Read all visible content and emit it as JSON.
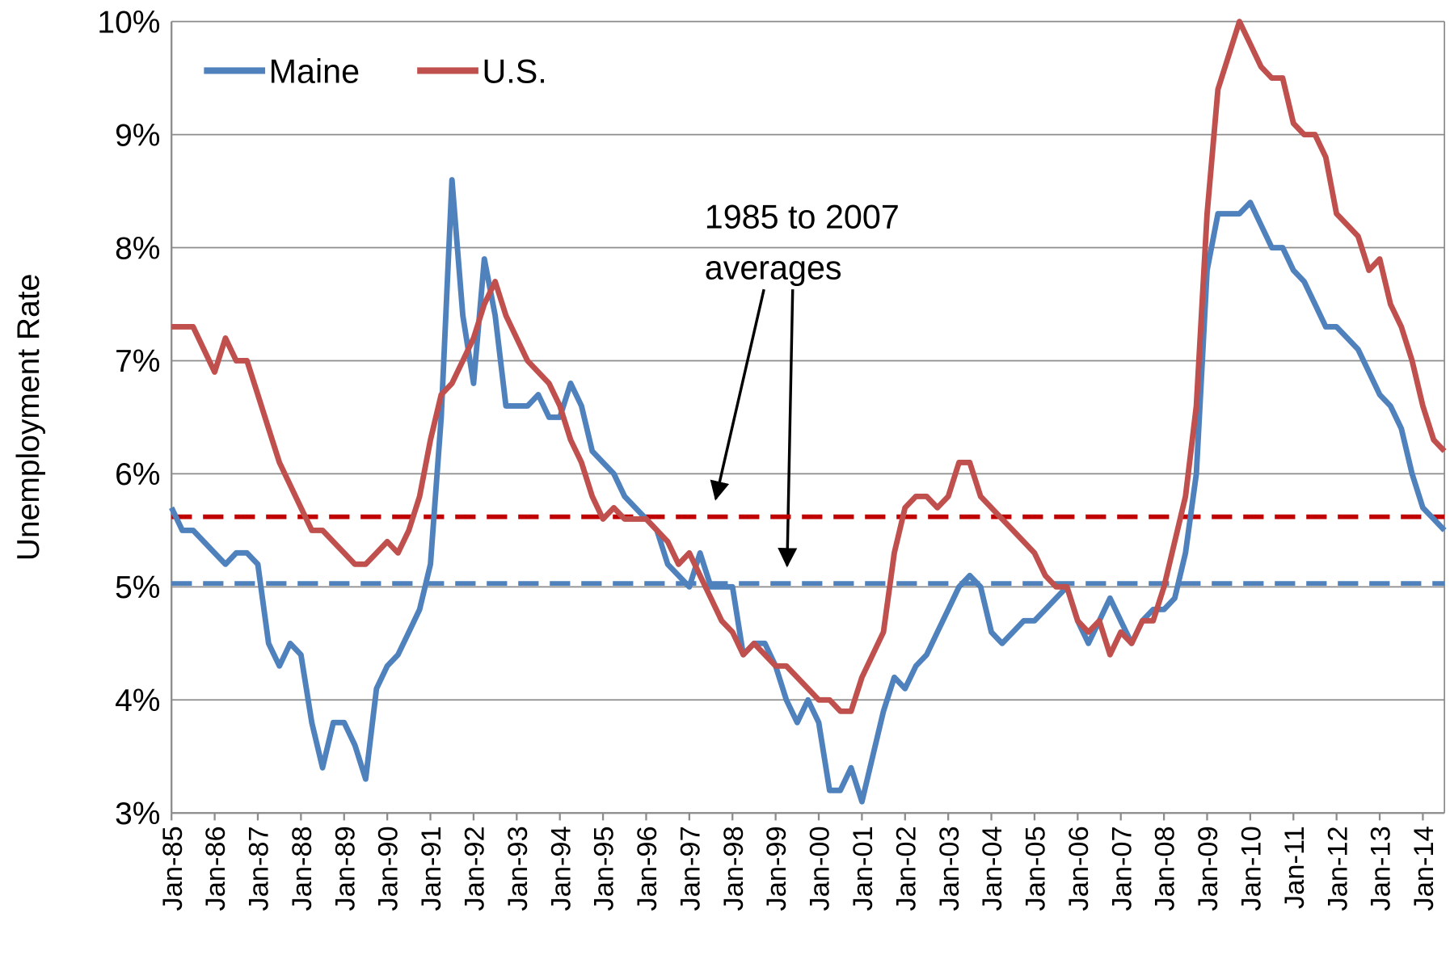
{
  "chart_data": {
    "type": "line",
    "y_label": "Unemployment Rate",
    "annotation": [
      "1985 to 2007",
      "averages"
    ],
    "categories": [
      "Jan-85",
      null,
      null,
      null,
      "Jan-86",
      null,
      null,
      null,
      "Jan-87",
      null,
      null,
      null,
      "Jan-88",
      null,
      null,
      null,
      "Jan-89",
      null,
      null,
      null,
      "Jan-90",
      null,
      null,
      null,
      "Jan-91",
      null,
      null,
      null,
      "Jan-92",
      null,
      null,
      null,
      "Jan-93",
      null,
      null,
      null,
      "Jan-94",
      null,
      null,
      null,
      "Jan-95",
      null,
      null,
      null,
      "Jan-96",
      null,
      null,
      null,
      "Jan-97",
      null,
      null,
      null,
      "Jan-98",
      null,
      null,
      null,
      "Jan-99",
      null,
      null,
      null,
      "Jan-00",
      null,
      null,
      null,
      "Jan-01",
      null,
      null,
      null,
      "Jan-02",
      null,
      null,
      null,
      "Jan-03",
      null,
      null,
      null,
      "Jan-04",
      null,
      null,
      null,
      "Jan-05",
      null,
      null,
      null,
      "Jan-06",
      null,
      null,
      null,
      "Jan-07",
      null,
      null,
      null,
      "Jan-08",
      null,
      null,
      null,
      "Jan-09",
      null,
      null,
      null,
      "Jan-10",
      null,
      null,
      null,
      "Jan-11",
      null,
      null,
      null,
      "Jan-12",
      null,
      null,
      null,
      "Jan-13",
      null,
      null,
      null,
      "Jan-14",
      null,
      null
    ],
    "series": [
      {
        "name": "Maine",
        "color": "#4f81bd",
        "values": [
          5.7,
          5.5,
          5.5,
          5.4,
          5.3,
          5.2,
          5.3,
          5.3,
          5.2,
          4.5,
          4.3,
          4.5,
          4.4,
          3.8,
          3.4,
          3.8,
          3.8,
          3.6,
          3.3,
          4.1,
          4.3,
          4.4,
          4.6,
          4.8,
          5.2,
          6.5,
          8.6,
          7.4,
          6.8,
          7.9,
          7.4,
          6.6,
          6.6,
          6.6,
          6.7,
          6.5,
          6.5,
          6.8,
          6.6,
          6.2,
          6.1,
          6.0,
          5.8,
          5.7,
          5.6,
          5.5,
          5.2,
          5.1,
          5.0,
          5.3,
          5.0,
          5.0,
          5.0,
          4.4,
          4.5,
          4.5,
          4.3,
          4.0,
          3.8,
          4.0,
          3.8,
          3.2,
          3.2,
          3.4,
          3.1,
          3.5,
          3.9,
          4.2,
          4.1,
          4.3,
          4.4,
          4.6,
          4.8,
          5.0,
          5.1,
          5.0,
          4.6,
          4.5,
          4.6,
          4.7,
          4.7,
          4.8,
          4.9,
          5.0,
          4.7,
          4.5,
          4.7,
          4.9,
          4.7,
          4.5,
          4.7,
          4.8,
          4.8,
          4.9,
          5.3,
          6.0,
          7.8,
          8.3,
          8.3,
          8.3,
          8.4,
          8.2,
          8.0,
          8.0,
          7.8,
          7.7,
          7.5,
          7.3,
          7.3,
          7.2,
          7.1,
          6.9,
          6.7,
          6.6,
          6.4,
          6.0,
          5.7,
          5.6,
          5.5
        ]
      },
      {
        "name": "U.S.",
        "color": "#c0504d",
        "values": [
          7.3,
          7.3,
          7.3,
          7.1,
          6.9,
          7.2,
          7.0,
          7.0,
          6.7,
          6.4,
          6.1,
          5.9,
          5.7,
          5.5,
          5.5,
          5.4,
          5.3,
          5.2,
          5.2,
          5.3,
          5.4,
          5.3,
          5.5,
          5.8,
          6.3,
          6.7,
          6.8,
          7.0,
          7.2,
          7.5,
          7.7,
          7.4,
          7.2,
          7.0,
          6.9,
          6.8,
          6.6,
          6.3,
          6.1,
          5.8,
          5.6,
          5.7,
          5.6,
          5.6,
          5.6,
          5.5,
          5.4,
          5.2,
          5.3,
          5.1,
          4.9,
          4.7,
          4.6,
          4.4,
          4.5,
          4.4,
          4.3,
          4.3,
          4.2,
          4.1,
          4.0,
          4.0,
          3.9,
          3.9,
          4.2,
          4.4,
          4.6,
          5.3,
          5.7,
          5.8,
          5.8,
          5.7,
          5.8,
          6.1,
          6.1,
          5.8,
          5.7,
          5.6,
          5.5,
          5.4,
          5.3,
          5.1,
          5.0,
          5.0,
          4.7,
          4.6,
          4.7,
          4.4,
          4.6,
          4.5,
          4.7,
          4.7,
          5.0,
          5.4,
          5.8,
          6.6,
          8.3,
          9.4,
          9.7,
          10.0,
          9.8,
          9.6,
          9.5,
          9.5,
          9.1,
          9.0,
          9.0,
          8.8,
          8.3,
          8.2,
          8.1,
          7.8,
          7.9,
          7.5,
          7.3,
          7.0,
          6.6,
          6.3,
          6.2
        ]
      }
    ],
    "reference_lines": [
      {
        "value": 5.62,
        "color": "#c00000"
      },
      {
        "value": 5.03,
        "color": "#4f81bd"
      }
    ],
    "ylim": [
      3,
      10
    ],
    "yticks": [
      {
        "value": 3,
        "label": "3%"
      },
      {
        "value": 4,
        "label": "4%"
      },
      {
        "value": 5,
        "label": "5%"
      },
      {
        "value": 6,
        "label": "6%"
      },
      {
        "value": 7,
        "label": "7%"
      },
      {
        "value": 8,
        "label": "8%"
      },
      {
        "value": 9,
        "label": "9%"
      },
      {
        "value": 10,
        "label": "10%"
      }
    ],
    "grid": true
  }
}
